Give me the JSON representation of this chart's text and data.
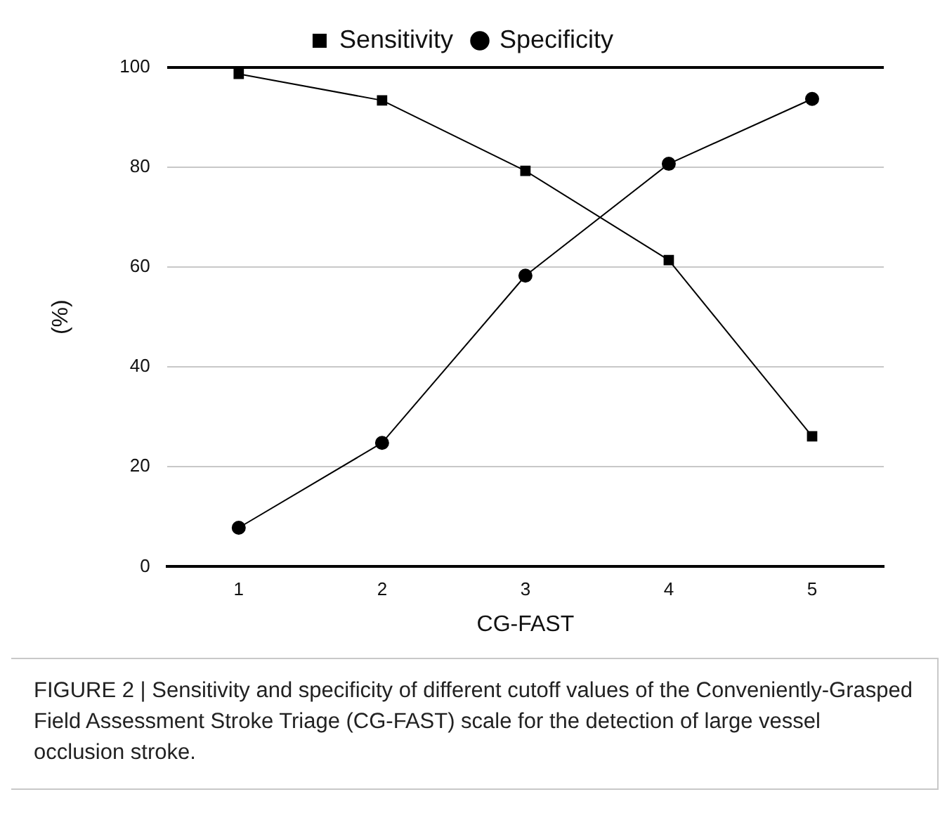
{
  "chart_data": {
    "type": "line",
    "xlabel": "CG-FAST",
    "ylabel": "(%)",
    "categories": [
      "1",
      "2",
      "3",
      "4",
      "5"
    ],
    "series": [
      {
        "name": "Sensitivity",
        "color": "#000000",
        "marker": "square",
        "values": [
          98.7,
          93.4,
          79.3,
          61.4,
          26.1
        ]
      },
      {
        "name": "Specificity",
        "color": "#000000",
        "marker": "circle",
        "values": [
          7.8,
          24.8,
          58.3,
          80.7,
          93.7
        ]
      }
    ],
    "ylim": [
      0,
      100
    ],
    "yticks": [
      0,
      20,
      40,
      60,
      80,
      100
    ],
    "grid": "y",
    "legend": "top",
    "line_style": "solid",
    "annotations": [
      "FIGURE 2 | Sensitivity and specificity of different cutoff values of the Conveniently-Grasped Field Assessment Stroke Triage (CG-FAST) scale for the detection of large vessel occlusion stroke."
    ]
  }
}
